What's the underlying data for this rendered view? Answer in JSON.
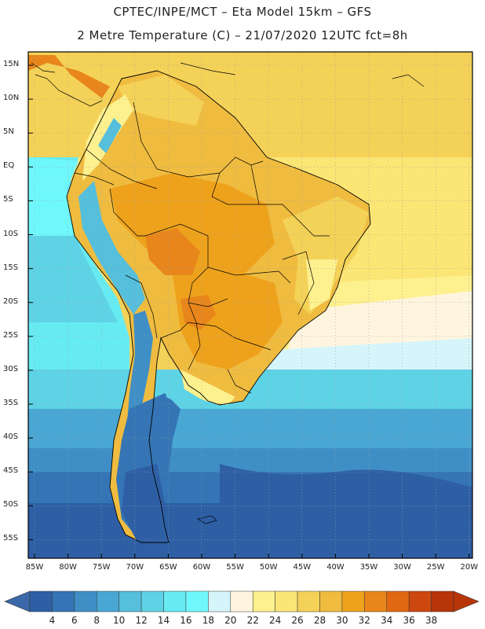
{
  "header": {
    "line1": "CPTEC/INPE/MCT –  Eta Model 15km – GFS",
    "line2": "2 Metre Temperature (C) – 21/07/2020 12UTC fct=8h"
  },
  "lat_labels": [
    "15N",
    "10N",
    "5N",
    "EQ",
    "5S",
    "10S",
    "15S",
    "20S",
    "25S",
    "30S",
    "35S",
    "40S",
    "45S",
    "50S",
    "55S"
  ],
  "lon_labels": [
    "85W",
    "80W",
    "75W",
    "70W",
    "65W",
    "60W",
    "55W",
    "50W",
    "45W",
    "40W",
    "35W",
    "30W",
    "25W",
    "20W"
  ],
  "colorbar": {
    "labels": [
      "4",
      "6",
      "8",
      "10",
      "12",
      "14",
      "16",
      "18",
      "20",
      "22",
      "24",
      "26",
      "28",
      "30",
      "32",
      "34",
      "36",
      "38"
    ],
    "colors": [
      "#2e5fa5",
      "#3575b5",
      "#3f8fc6",
      "#4aa7d4",
      "#55bfdc",
      "#5fd3e6",
      "#67ebf2",
      "#6ff8fb",
      "#d5f5fb",
      "#fff5df",
      "#fdf08e",
      "#fbe574",
      "#f4d258",
      "#efbc40",
      "#eea21c",
      "#e8861c",
      "#e06812",
      "#cc4810",
      "#b83509"
    ],
    "low_color": "#3b68a8",
    "high_color": "#b83509"
  },
  "colors": {
    "ocean_south_deep": "#2e5fa5",
    "ocean_south": "#3575b5",
    "ocean_mid": "#4aa7d4",
    "ocean_cool": "#5fd3e6",
    "ocean_pacific": "#67ebf2",
    "ocean_warm": "#fbe574",
    "land_hot": "#eea21c",
    "land_warm": "#efbc40",
    "land_hotter": "#e8861c",
    "land_cool": "#fdf08e",
    "andes": "#55bfdc",
    "patagonia": "#2e5fa5"
  }
}
